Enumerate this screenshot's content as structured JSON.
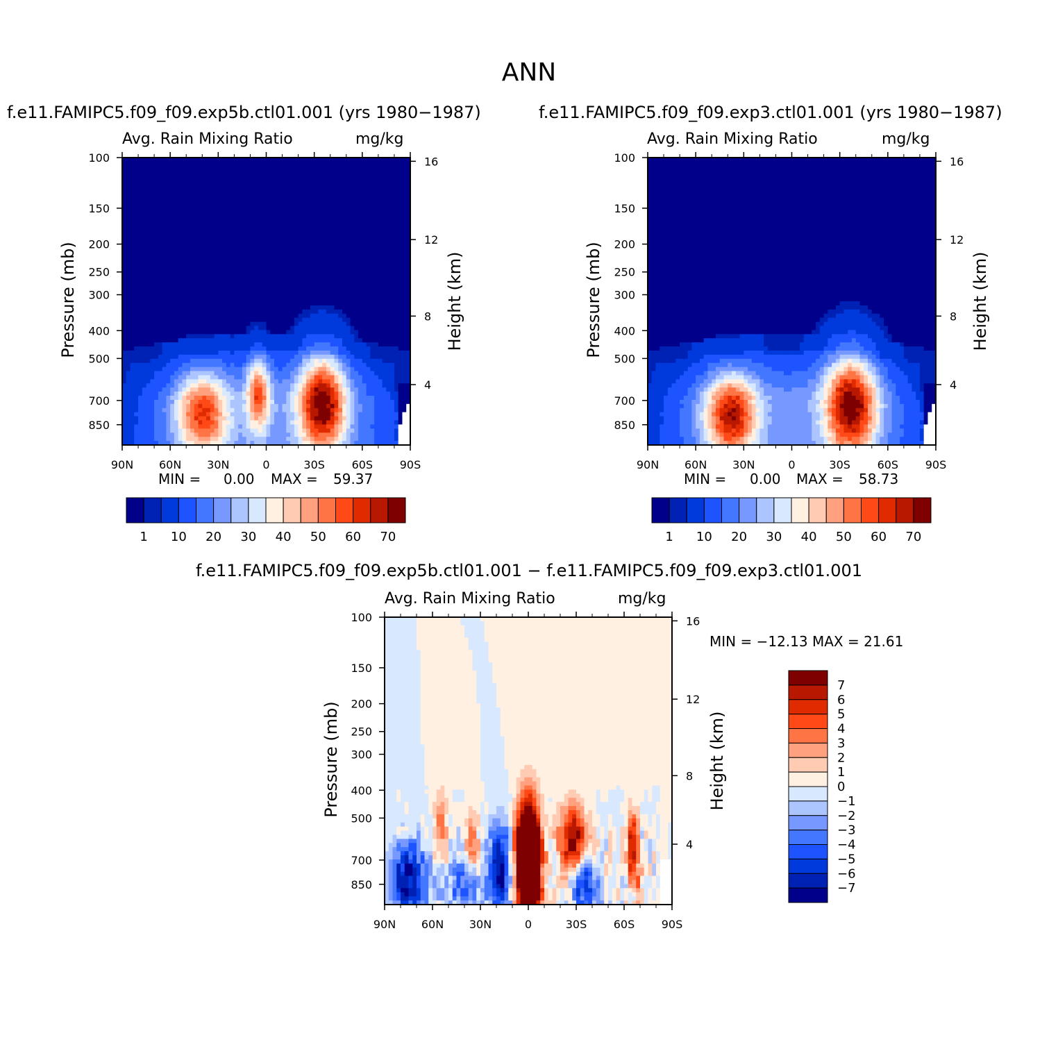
{
  "figure": {
    "title": "ANN"
  },
  "panels": [
    {
      "case_title": "f.e11.FAMIPC5.f09_f09.exp5b.ctl01.001 (yrs 1980−1987)",
      "variable": "Avg. Rain Mixing Ratio",
      "units": "mg/kg",
      "stats_min_label": "MIN =",
      "stats_min": "0.00",
      "stats_max_label": "MAX =",
      "stats_max": "59.37"
    },
    {
      "case_title": "f.e11.FAMIPC5.f09_f09.exp3.ctl01.001 (yrs 1980−1987)",
      "variable": "Avg. Rain Mixing Ratio",
      "units": "mg/kg",
      "stats_min_label": "MIN =",
      "stats_min": "0.00",
      "stats_max_label": "MAX =",
      "stats_max": "58.73"
    },
    {
      "case_title": "f.e11.FAMIPC5.f09_f09.exp5b.ctl01.001 − f.e11.FAMIPC5.f09_f09.exp3.ctl01.001",
      "variable": "Avg. Rain Mixing Ratio",
      "units": "mg/kg",
      "stats_text": "MIN = −12.13   MAX =   21.61"
    }
  ],
  "axes": {
    "ylabel": "Pressure (mb)",
    "y2label": "Height (km)",
    "pressure_ticks": [
      "100",
      "150",
      "200",
      "250",
      "300",
      "400",
      "500",
      "700",
      "850"
    ],
    "height_ticks": [
      "16",
      "12",
      "8",
      "4"
    ],
    "lat_ticks": [
      "90N",
      "60N",
      "30N",
      "0",
      "30S",
      "60S",
      "90S"
    ]
  },
  "colorbars": {
    "case_labels": [
      "1",
      "10",
      "20",
      "30",
      "40",
      "50",
      "60",
      "70"
    ],
    "case_colors": [
      "#00008b",
      "#0022b4",
      "#0039dc",
      "#1e54ff",
      "#4477ff",
      "#7799ff",
      "#adc5ff",
      "#d8e9ff",
      "#fff0e1",
      "#ffccb3",
      "#ffa17f",
      "#ff7444",
      "#ff4a18",
      "#e02b00",
      "#b81800",
      "#7f0000"
    ],
    "diff_labels": [
      "7",
      "6",
      "5",
      "4",
      "3",
      "2",
      "1",
      "0",
      "−1",
      "−2",
      "−3",
      "−4",
      "−5",
      "−6",
      "−7"
    ],
    "diff_colors_top_to_bottom": [
      "#7f0000",
      "#b81800",
      "#e02b00",
      "#ff4a18",
      "#ff7444",
      "#ffa17f",
      "#ffccb3",
      "#fff0e1",
      "#d8e9ff",
      "#adc5ff",
      "#7799ff",
      "#4477ff",
      "#1e54ff",
      "#0039dc",
      "#0022b4",
      "#00008b"
    ]
  },
  "chart_data": [
    {
      "type": "heatmap",
      "title": "f.e11.FAMIPC5.f09_f09.exp5b.ctl01.001 (yrs 1980−1987)",
      "subtitle": "Avg. Rain Mixing Ratio",
      "units": "mg/kg",
      "xlabel": "",
      "ylabel": "Pressure (mb)",
      "y2label": "Height (km)",
      "x_ticks": [
        "90N",
        "60N",
        "30N",
        "0",
        "30S",
        "60S",
        "90S"
      ],
      "y_ticks": [
        100,
        150,
        200,
        250,
        300,
        400,
        500,
        700,
        850
      ],
      "y_log": true,
      "y_range": [
        100,
        1000
      ],
      "x_range": [
        90,
        -90
      ],
      "min": 0.0,
      "max": 59.37,
      "features": [
        {
          "lat": 40,
          "p": 780,
          "peak": 42,
          "sig_lat": 11,
          "sig_lnp": 0.22
        },
        {
          "lat": 5,
          "p": 670,
          "peak": 38,
          "sig_lat": 5,
          "sig_lnp": 0.2
        },
        {
          "lat": -35,
          "p": 720,
          "peak": 58,
          "sig_lat": 10,
          "sig_lnp": 0.26
        }
      ]
    },
    {
      "type": "heatmap",
      "title": "f.e11.FAMIPC5.f09_f09.exp3.ctl01.001 (yrs 1980−1987)",
      "subtitle": "Avg. Rain Mixing Ratio",
      "units": "mg/kg",
      "xlabel": "",
      "ylabel": "Pressure (mb)",
      "y2label": "Height (km)",
      "x_ticks": [
        "90N",
        "60N",
        "30N",
        "0",
        "30S",
        "60S",
        "90S"
      ],
      "y_ticks": [
        100,
        150,
        200,
        250,
        300,
        400,
        500,
        700,
        850
      ],
      "y_log": true,
      "y_range": [
        100,
        1000
      ],
      "x_range": [
        90,
        -90
      ],
      "min": 0.0,
      "max": 58.73,
      "features": [
        {
          "lat": 38,
          "p": 790,
          "peak": 50,
          "sig_lat": 11,
          "sig_lnp": 0.22
        },
        {
          "lat": -37,
          "p": 730,
          "peak": 58,
          "sig_lat": 11,
          "sig_lnp": 0.27
        }
      ]
    },
    {
      "type": "heatmap",
      "title": "f.e11.FAMIPC5.f09_f09.exp5b.ctl01.001 − f.e11.FAMIPC5.f09_f09.exp3.ctl01.001",
      "subtitle": "Avg. Rain Mixing Ratio",
      "units": "mg/kg",
      "xlabel": "",
      "ylabel": "Pressure (mb)",
      "y2label": "Height (km)",
      "x_ticks": [
        "90N",
        "60N",
        "30N",
        "0",
        "30S",
        "60S",
        "90S"
      ],
      "y_ticks": [
        100,
        150,
        200,
        250,
        300,
        400,
        500,
        700,
        850
      ],
      "y_log": true,
      "y_range": [
        100,
        1000
      ],
      "x_range": [
        90,
        -90
      ],
      "min": -12.13,
      "max": 21.61,
      "features": [
        {
          "lat": 0,
          "p": 720,
          "peak": 21,
          "sig_lat": 5,
          "sig_lnp": 0.32
        },
        {
          "lat": -28,
          "p": 600,
          "peak": 8,
          "sig_lat": 6,
          "sig_lnp": 0.2
        },
        {
          "lat": -65,
          "p": 620,
          "peak": 7,
          "sig_lat": 2.5,
          "sig_lnp": 0.18
        },
        {
          "lat": 18,
          "p": 760,
          "peak": -8,
          "sig_lat": 5,
          "sig_lnp": 0.25
        },
        {
          "lat": -35,
          "p": 850,
          "peak": -6,
          "sig_lat": 6,
          "sig_lnp": 0.15
        },
        {
          "lat": 75,
          "p": 820,
          "peak": -7,
          "sig_lat": 8,
          "sig_lnp": 0.22
        },
        {
          "lat": 40,
          "p": 850,
          "peak": -4,
          "sig_lat": 8,
          "sig_lnp": 0.15
        },
        {
          "lat": 55,
          "p": 520,
          "peak": 3,
          "sig_lat": 3,
          "sig_lnp": 0.2
        },
        {
          "lat": 35,
          "p": 620,
          "peak": 3,
          "sig_lat": 3,
          "sig_lnp": 0.2
        },
        {
          "lat": -68,
          "p": 820,
          "peak": 3,
          "sig_lat": 2,
          "sig_lnp": 0.1
        }
      ]
    }
  ]
}
